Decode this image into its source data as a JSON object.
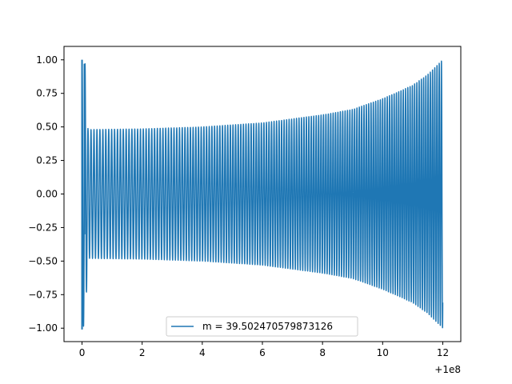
{
  "chart_data": {
    "type": "line",
    "title": "",
    "xlabel": "",
    "ylabel": "",
    "x_offset_label": "+1e8",
    "xlim": [
      -0.6,
      12.6
    ],
    "ylim": [
      -1.1,
      1.1
    ],
    "xticks": [
      0,
      2,
      4,
      6,
      8,
      10,
      12
    ],
    "xtick_labels": [
      "0",
      "2",
      "4",
      "6",
      "8",
      "10",
      "12"
    ],
    "yticks": [
      -1.0,
      -0.75,
      -0.5,
      -0.25,
      0.0,
      0.25,
      0.5,
      0.75,
      1.0
    ],
    "ytick_labels": [
      "−1.00",
      "−0.75",
      "−0.50",
      "−0.25",
      "0.00",
      "0.25",
      "0.50",
      "0.75",
      "1.00"
    ],
    "grid": false,
    "legend_position": "bottom-center",
    "series": [
      {
        "name": "m = 39.502470579873126",
        "color": "#1f77b4",
        "x_range": [
          0,
          12
        ],
        "envelope_points": [
          {
            "x": 0.0,
            "amplitude": 1.0
          },
          {
            "x": 0.1,
            "amplitude": 0.97
          },
          {
            "x": 0.2,
            "amplitude": 0.48
          },
          {
            "x": 2,
            "amplitude": 0.485
          },
          {
            "x": 4,
            "amplitude": 0.5
          },
          {
            "x": 6,
            "amplitude": 0.53
          },
          {
            "x": 8,
            "amplitude": 0.59
          },
          {
            "x": 9,
            "amplitude": 0.63
          },
          {
            "x": 10,
            "amplitude": 0.71
          },
          {
            "x": 11,
            "amplitude": 0.81
          },
          {
            "x": 11.5,
            "amplitude": 0.89
          },
          {
            "x": 12,
            "amplitude": 1.0
          }
        ],
        "visible_cycles": 120
      }
    ]
  }
}
